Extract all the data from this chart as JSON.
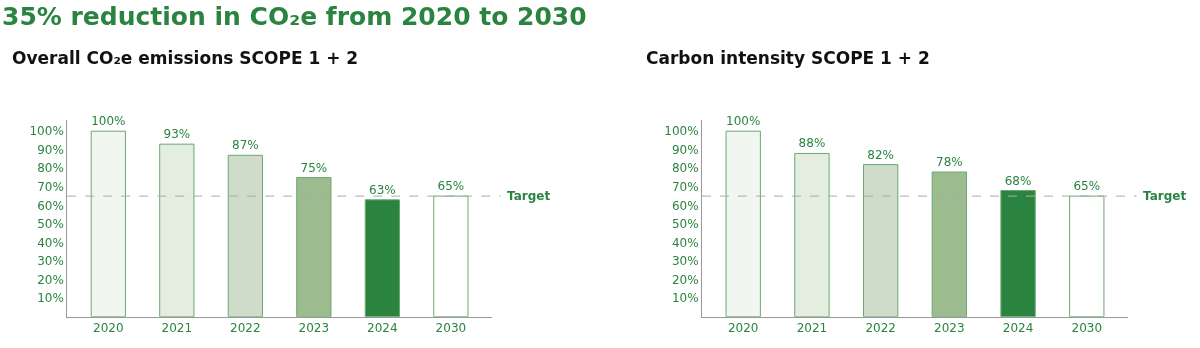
{
  "chart_data": [
    {
      "type": "bar",
      "title": "35% reduction in CO₂e from 2020 to 2030",
      "subtitle": "Overall CO₂e emissions SCOPE 1 + 2",
      "categories": [
        "2020",
        "2021",
        "2022",
        "2023",
        "2024",
        "2030"
      ],
      "values": [
        100,
        93,
        87,
        75,
        63,
        65
      ],
      "colors": [
        "#f2f6f0",
        "#e3ede0",
        "#cfdcca",
        "#9cbb8f",
        "#2a8440",
        "#ffffff"
      ],
      "ylim": [
        0,
        106
      ],
      "yticks": [
        {
          "value": 10,
          "label": "10%"
        },
        {
          "value": 20,
          "label": "20%"
        },
        {
          "value": 30,
          "label": "30%"
        },
        {
          "value": 40,
          "label": "40%"
        },
        {
          "value": 50,
          "label": "50%"
        },
        {
          "value": 60,
          "label": "60%"
        },
        {
          "value": 70,
          "label": "70%"
        },
        {
          "value": 80,
          "label": "80%"
        },
        {
          "value": 90,
          "label": "90%"
        },
        {
          "value": 100,
          "label": "100%"
        }
      ],
      "value_labels": [
        "100%",
        "93%",
        "87%",
        "75%",
        "63%",
        "65%"
      ],
      "ref_lines": [
        {
          "axis": "y",
          "value": 65,
          "label": "Target",
          "color": "#aaaaaa",
          "line_style": "dashed"
        }
      ]
    },
    {
      "type": "bar",
      "subtitle": "Carbon intensity SCOPE 1 + 2",
      "categories": [
        "2020",
        "2021",
        "2022",
        "2023",
        "2024",
        "2030"
      ],
      "values": [
        100,
        88,
        82,
        78,
        68,
        65
      ],
      "colors": [
        "#f2f6f0",
        "#e3ede0",
        "#cfdcca",
        "#9cbb8f",
        "#2a8440",
        "#ffffff"
      ],
      "ylim": [
        0,
        106
      ],
      "yticks": [
        {
          "value": 10,
          "label": "10%"
        },
        {
          "value": 20,
          "label": "20%"
        },
        {
          "value": 30,
          "label": "30%"
        },
        {
          "value": 40,
          "label": "40%"
        },
        {
          "value": 50,
          "label": "50%"
        },
        {
          "value": 60,
          "label": "60%"
        },
        {
          "value": 70,
          "label": "70%"
        },
        {
          "value": 80,
          "label": "80%"
        },
        {
          "value": 90,
          "label": "90%"
        },
        {
          "value": 100,
          "label": "100%"
        }
      ],
      "value_labels": [
        "100%",
        "88%",
        "82%",
        "78%",
        "68%",
        "65%"
      ],
      "ref_lines": [
        {
          "axis": "y",
          "value": 65,
          "label": "Target",
          "color": "#aaaaaa",
          "line_style": "dashed"
        }
      ]
    }
  ]
}
